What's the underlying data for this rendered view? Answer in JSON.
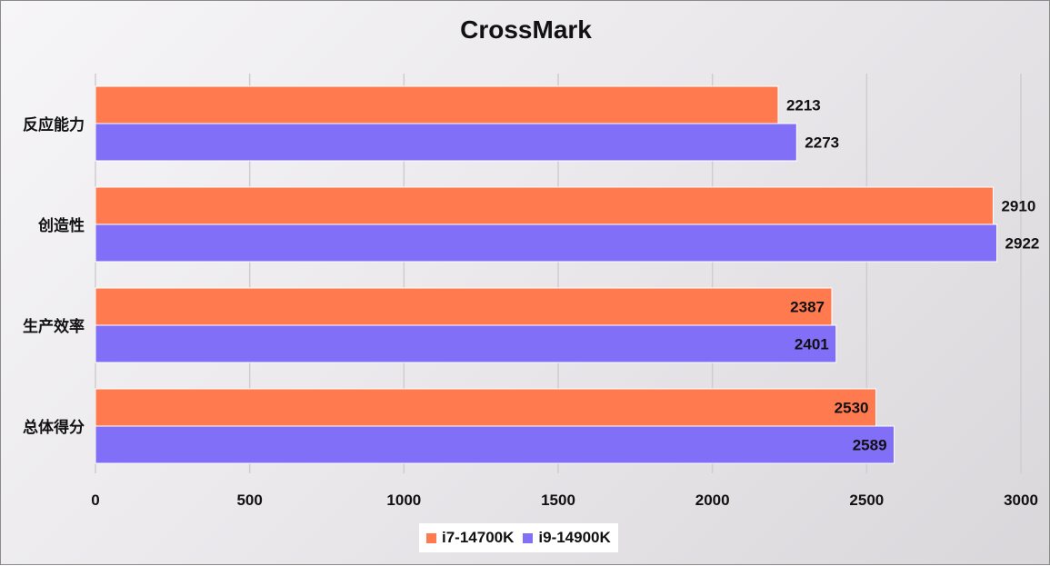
{
  "chart_data": {
    "type": "bar",
    "orientation": "horizontal",
    "title": "CrossMark",
    "categories": [
      "反应能力",
      "创造性",
      "生产效率",
      "总体得分"
    ],
    "series": [
      {
        "name": "i7-14700K",
        "color": "#ff7a4f",
        "values": [
          2213,
          2910,
          2387,
          2530
        ]
      },
      {
        "name": "i9-14900K",
        "color": "#8170f7",
        "values": [
          2273,
          2922,
          2401,
          2589
        ]
      }
    ],
    "xlim": [
      0,
      3000
    ],
    "xticks": [
      0,
      500,
      1000,
      1500,
      2000,
      2500,
      3000
    ],
    "grid": true,
    "legend_position": "bottom"
  }
}
